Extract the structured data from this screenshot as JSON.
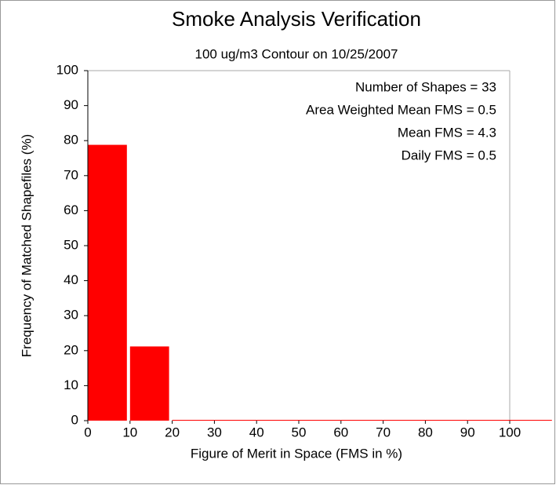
{
  "chart_data": {
    "type": "histogram",
    "title": "Smoke Analysis Verification",
    "subtitle": "100 ug/m3 Contour on 10/25/2007",
    "x_label": "Figure of Merit in Space (FMS in %)",
    "y_label": "Frequency of Matched Shapefiles (%)",
    "bins": [
      0,
      10,
      20,
      30,
      40,
      50,
      60,
      70,
      80,
      90,
      100,
      110
    ],
    "values": [
      78.8,
      21.2,
      0,
      0,
      0,
      0,
      0,
      0,
      0,
      0,
      0
    ],
    "color": "#ff0000",
    "xlim": [
      0,
      100
    ],
    "ylim": [
      0,
      100
    ],
    "xticks": [
      0,
      10,
      20,
      30,
      40,
      50,
      60,
      70,
      80,
      90,
      100
    ],
    "yticks": [
      0,
      10,
      20,
      30,
      40,
      50,
      60,
      70,
      80,
      90,
      100
    ],
    "annotations": [
      "Number of Shapes = 33",
      "Area Weighted Mean FMS = 0.5",
      "Mean FMS = 4.3",
      "Daily FMS = 0.5"
    ]
  }
}
